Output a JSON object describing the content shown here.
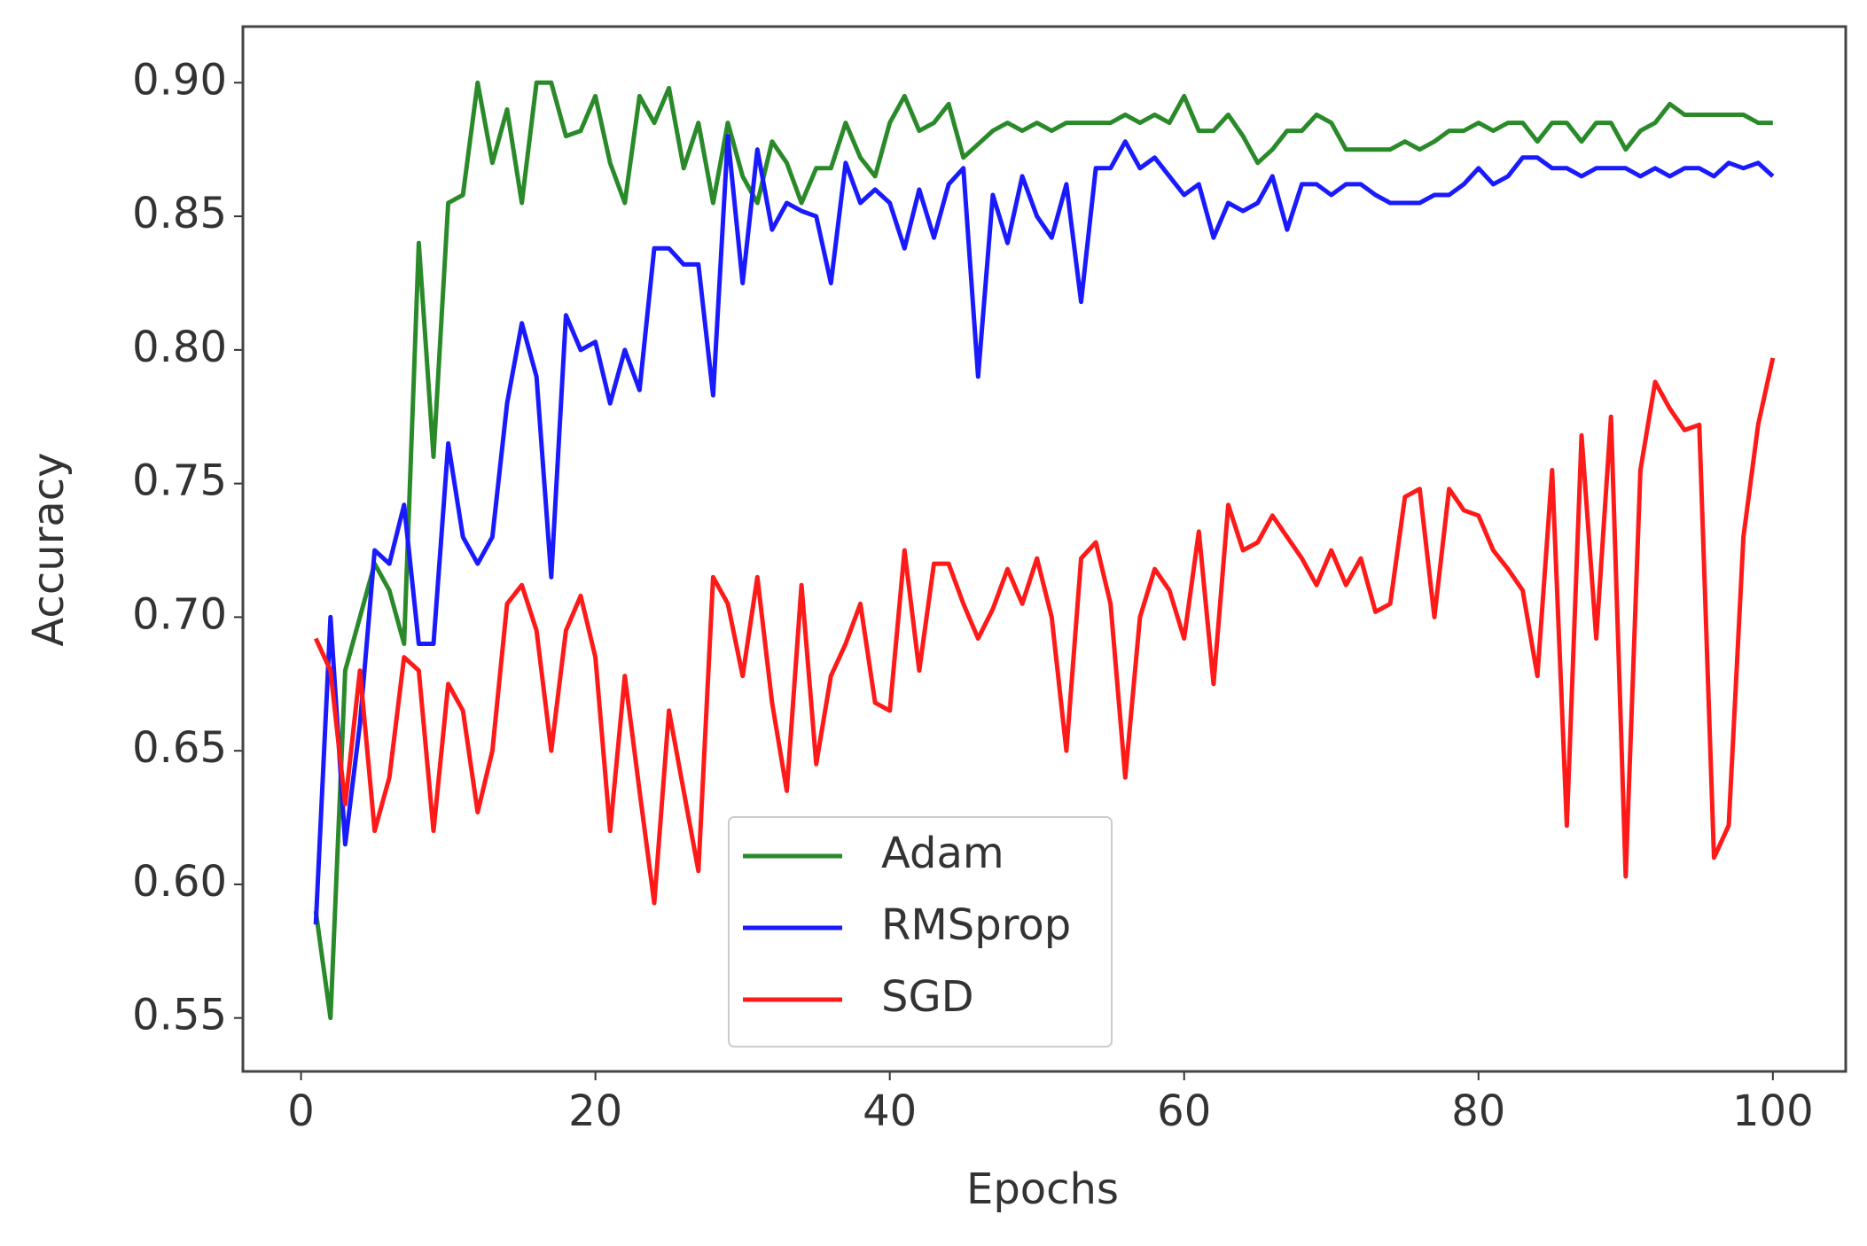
{
  "chart_data": {
    "type": "line",
    "x_label": "Epochs",
    "y_label": "Accuracy",
    "x": [
      1,
      2,
      3,
      4,
      5,
      6,
      7,
      8,
      9,
      10,
      11,
      12,
      13,
      14,
      15,
      16,
      17,
      18,
      19,
      20,
      21,
      22,
      23,
      24,
      25,
      26,
      27,
      28,
      29,
      30,
      31,
      32,
      33,
      34,
      35,
      36,
      37,
      38,
      39,
      40,
      41,
      42,
      43,
      44,
      45,
      46,
      47,
      48,
      49,
      50,
      51,
      52,
      53,
      54,
      55,
      56,
      57,
      58,
      59,
      60,
      61,
      62,
      63,
      64,
      65,
      66,
      67,
      68,
      69,
      70,
      71,
      72,
      73,
      74,
      75,
      76,
      77,
      78,
      79,
      80,
      81,
      82,
      83,
      84,
      85,
      86,
      87,
      88,
      89,
      90,
      91,
      92,
      93,
      94,
      95,
      96,
      97,
      98,
      99,
      100
    ],
    "series": [
      {
        "name": "Adam",
        "color": "#2a8a2a",
        "values": [
          0.59,
          0.55,
          0.68,
          0.7,
          0.72,
          0.71,
          0.69,
          0.84,
          0.76,
          0.855,
          0.858,
          0.9,
          0.87,
          0.89,
          0.855,
          0.9,
          0.9,
          0.88,
          0.882,
          0.895,
          0.87,
          0.855,
          0.895,
          0.885,
          0.898,
          0.868,
          0.885,
          0.855,
          0.885,
          0.865,
          0.855,
          0.878,
          0.87,
          0.855,
          0.868,
          0.868,
          0.885,
          0.872,
          0.865,
          0.885,
          0.895,
          0.882,
          0.885,
          0.892,
          0.872,
          0.877,
          0.882,
          0.885,
          0.882,
          0.885,
          0.882,
          0.885,
          0.885,
          0.885,
          0.885,
          0.888,
          0.885,
          0.888,
          0.885,
          0.895,
          0.882,
          0.882,
          0.888,
          0.88,
          0.87,
          0.875,
          0.882,
          0.882,
          0.888,
          0.885,
          0.875,
          0.875,
          0.875,
          0.875,
          0.878,
          0.875,
          0.878,
          0.882,
          0.882,
          0.885,
          0.882,
          0.885,
          0.885,
          0.878,
          0.885,
          0.885,
          0.878,
          0.885,
          0.885,
          0.875,
          0.882,
          0.885,
          0.892,
          0.888,
          0.888,
          0.888,
          0.888,
          0.888,
          0.885,
          0.885
        ]
      },
      {
        "name": "RMSprop",
        "color": "#1a1aff",
        "values": [
          0.585,
          0.7,
          0.615,
          0.66,
          0.725,
          0.72,
          0.742,
          0.69,
          0.69,
          0.765,
          0.73,
          0.72,
          0.73,
          0.78,
          0.81,
          0.79,
          0.715,
          0.813,
          0.8,
          0.803,
          0.78,
          0.8,
          0.785,
          0.838,
          0.838,
          0.832,
          0.832,
          0.783,
          0.88,
          0.825,
          0.875,
          0.845,
          0.855,
          0.852,
          0.85,
          0.825,
          0.87,
          0.855,
          0.86,
          0.855,
          0.838,
          0.86,
          0.842,
          0.862,
          0.868,
          0.79,
          0.858,
          0.84,
          0.865,
          0.85,
          0.842,
          0.862,
          0.818,
          0.868,
          0.868,
          0.878,
          0.868,
          0.872,
          0.865,
          0.858,
          0.862,
          0.842,
          0.855,
          0.852,
          0.855,
          0.865,
          0.845,
          0.862,
          0.862,
          0.858,
          0.862,
          0.862,
          0.858,
          0.855,
          0.855,
          0.855,
          0.858,
          0.858,
          0.862,
          0.868,
          0.862,
          0.865,
          0.872,
          0.872,
          0.868,
          0.868,
          0.865,
          0.868,
          0.868,
          0.868,
          0.865,
          0.868,
          0.865,
          0.868,
          0.868,
          0.865,
          0.87,
          0.868,
          0.87,
          0.865
        ]
      },
      {
        "name": "SGD",
        "color": "#ff1a1a",
        "values": [
          0.692,
          0.68,
          0.63,
          0.68,
          0.62,
          0.64,
          0.685,
          0.68,
          0.62,
          0.675,
          0.665,
          0.627,
          0.65,
          0.705,
          0.712,
          0.695,
          0.65,
          0.695,
          0.708,
          0.685,
          0.62,
          0.678,
          0.635,
          0.593,
          0.665,
          0.635,
          0.605,
          0.715,
          0.705,
          0.678,
          0.715,
          0.668,
          0.635,
          0.712,
          0.645,
          0.678,
          0.69,
          0.705,
          0.668,
          0.665,
          0.725,
          0.68,
          0.72,
          0.72,
          0.705,
          0.692,
          0.703,
          0.718,
          0.705,
          0.722,
          0.7,
          0.65,
          0.722,
          0.728,
          0.705,
          0.64,
          0.7,
          0.718,
          0.71,
          0.692,
          0.732,
          0.675,
          0.742,
          0.725,
          0.728,
          0.738,
          0.73,
          0.722,
          0.712,
          0.725,
          0.712,
          0.722,
          0.702,
          0.705,
          0.745,
          0.748,
          0.7,
          0.748,
          0.74,
          0.738,
          0.725,
          0.718,
          0.71,
          0.678,
          0.755,
          0.622,
          0.768,
          0.692,
          0.775,
          0.603,
          0.755,
          0.788,
          0.778,
          0.77,
          0.772,
          0.61,
          0.622,
          0.73,
          0.772,
          0.797
        ]
      }
    ],
    "xlim": [
      -3.95,
      104.95
    ],
    "ylim": [
      0.53,
      0.921
    ],
    "xticks": [
      0,
      20,
      40,
      60,
      80,
      100
    ],
    "yticks": [
      0.55,
      {
        "value": 0.6,
        "label": "0.60"
      },
      0.65,
      {
        "value": 0.7,
        "label": "0.70"
      },
      0.75,
      {
        "value": 0.8,
        "label": "0.80"
      },
      0.85,
      {
        "value": 0.9,
        "label": "0.90"
      }
    ],
    "grid": false,
    "legend": "lower center"
  }
}
